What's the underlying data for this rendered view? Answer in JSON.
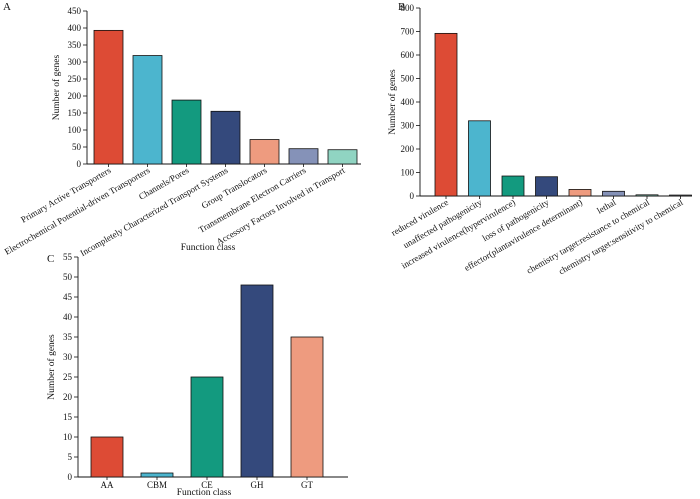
{
  "chart_data": [
    {
      "panel_label": "A",
      "type": "bar",
      "title": "",
      "xlabel": "Function class",
      "ylabel": "Number of genes",
      "ylim": [
        0,
        450
      ],
      "yticks": [
        0,
        50,
        100,
        150,
        200,
        250,
        300,
        350,
        400,
        450
      ],
      "categories": [
        "Primary Active Transporters",
        "Electrochemical Potential-driven Transporters",
        "Channels/Pores",
        "Incompletely Characterized Transport Systems",
        "Group Translocators",
        "Transmembrane Electron Carriers",
        "Accessory Factors Involved in Transport"
      ],
      "values": [
        393,
        319,
        188,
        155,
        72,
        45,
        42
      ],
      "colors": [
        "#dd4b35",
        "#4cb5ce",
        "#139a7f",
        "#34497c",
        "#ee9b7f",
        "#8592b8",
        "#90d4c2"
      ],
      "grid": false,
      "legend": "none"
    },
    {
      "panel_label": "B",
      "type": "bar",
      "title": "",
      "xlabel": "",
      "ylabel": "Number of genes",
      "ylim": [
        0,
        800
      ],
      "yticks": [
        0,
        100,
        200,
        300,
        400,
        500,
        600,
        700,
        800
      ],
      "categories": [
        "reduced virulence",
        "unaffected pathogenicity",
        "increased virulence(hypervirulence)",
        "loss of pathogenicity",
        "effector(plantavirulence determinant)",
        "lethal",
        "chemistry target:resistance to chemical",
        "chemistry target:sensitivity to chemical"
      ],
      "values": [
        692,
        320,
        85,
        82,
        28,
        20,
        5,
        4
      ],
      "colors": [
        "#dd4b35",
        "#4cb5ce",
        "#139a7f",
        "#34497c",
        "#ee9b7f",
        "#8592b8",
        "#90d4c2",
        "#b1b6c2"
      ],
      "grid": false,
      "legend": "none"
    },
    {
      "panel_label": "C",
      "type": "bar",
      "title": "",
      "xlabel": "Function class",
      "ylabel": "Number of genes",
      "ylim": [
        0,
        55
      ],
      "yticks": [
        0,
        5,
        10,
        15,
        20,
        25,
        30,
        35,
        40,
        45,
        50,
        55
      ],
      "categories": [
        "AA",
        "CBM",
        "CE",
        "GH",
        "GT"
      ],
      "values": [
        10,
        1,
        25,
        48,
        35
      ],
      "colors": [
        "#dd4b35",
        "#4cb5ce",
        "#139a7f",
        "#34497c",
        "#ee9b7f"
      ],
      "grid": false,
      "legend": "none"
    }
  ]
}
